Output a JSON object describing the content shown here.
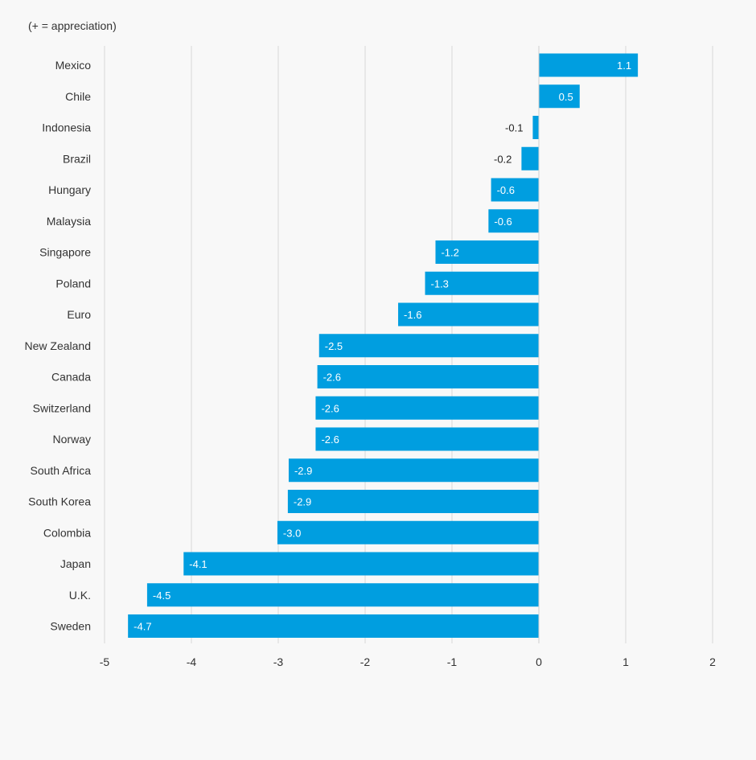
{
  "note": "(+ = appreciation)",
  "chart_data": {
    "type": "bar",
    "orientation": "horizontal",
    "categories": [
      "Mexico",
      "Chile",
      "Indonesia",
      "Brazil",
      "Hungary",
      "Malaysia",
      "Singapore",
      "Poland",
      "Euro",
      "New Zealand",
      "Canada",
      "Switzerland",
      "Norway",
      "South Africa",
      "South Korea",
      "Colombia",
      "Japan",
      "U.K.",
      "Sweden"
    ],
    "values": [
      1.14,
      0.47,
      -0.07,
      -0.2,
      -0.55,
      -0.58,
      -1.19,
      -1.31,
      -1.62,
      -2.53,
      -2.55,
      -2.57,
      -2.57,
      -2.88,
      -2.89,
      -3.01,
      -4.09,
      -4.51,
      -4.73
    ],
    "value_labels": [
      "1.1",
      "0.5",
      "-0.1",
      "-0.2",
      "-0.6",
      "-0.6",
      "-1.2",
      "-1.3",
      "-1.6",
      "-2.5",
      "-2.6",
      "-2.6",
      "-2.6",
      "-2.9",
      "-2.9",
      "-3.0",
      "-4.1",
      "-4.5",
      "-4.7"
    ],
    "xlim": [
      -5,
      2
    ],
    "xticks": [
      -5,
      -4,
      -3,
      -2,
      -1,
      0,
      1,
      2
    ],
    "xtick_labels": [
      "-5",
      "-4",
      "-3",
      "-2",
      "-1",
      "0",
      "1",
      "2"
    ],
    "grid": "vertical",
    "bar_color": "#009ee0"
  }
}
